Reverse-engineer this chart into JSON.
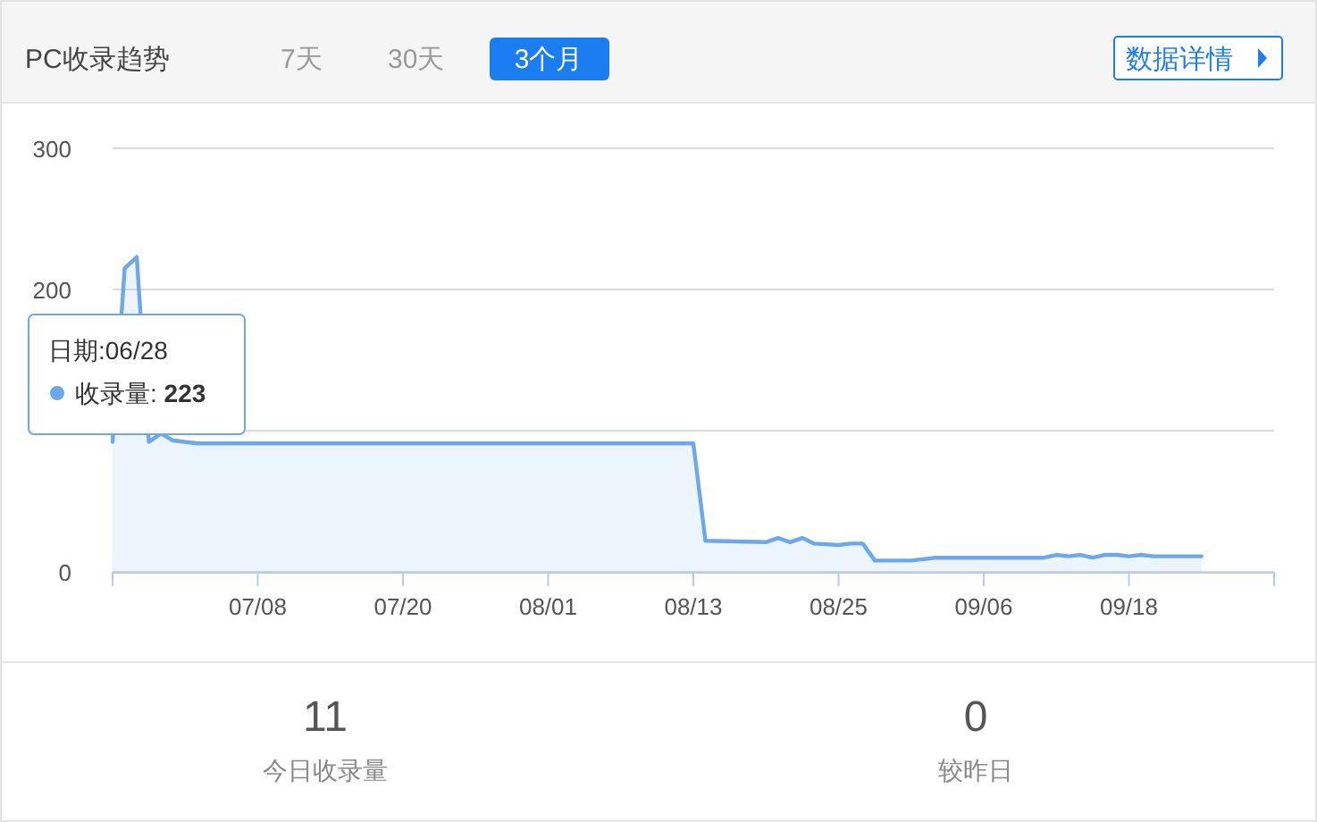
{
  "chart_data": [
    {
      "type": "line",
      "title": "PC收录趋势",
      "annotations": [
        "7天",
        "30天",
        "3个月",
        "数据详情",
        "日期:06/28\n收录量: 223"
      ],
      "x": [
        "--06-26",
        "--06-27",
        "--06-28",
        "--06-29",
        "--06-30",
        "--07-01",
        "--07-03",
        "--08-13",
        "--08-14",
        "--08-19",
        "--08-20",
        "--08-21",
        "--08-22",
        "--08-23",
        "--08-25",
        "--08-26",
        "--08-27",
        "--08-28",
        "--08-31",
        "--09-02",
        "--09-11",
        "--09-12",
        "--09-13",
        "--09-14",
        "--09-15",
        "--09-16",
        "--09-17",
        "--09-18",
        "--09-19",
        "--09-20",
        "--09-24"
      ],
      "series": [
        {
          "type": "area",
          "color": "#6ba9ea",
          "values": [
            92,
            215,
            223,
            92,
            98,
            93,
            91,
            91,
            22,
            21,
            24,
            21,
            24,
            20,
            19,
            20,
            20,
            8,
            8,
            10,
            10,
            12,
            11,
            12,
            10,
            12,
            12,
            11,
            12,
            11,
            11
          ]
        }
      ],
      "xlim": [
        "--06-26",
        "--09-30"
      ],
      "xticks": [
        {
          "value": "--06-26",
          "label": null
        },
        {
          "value": "--07-08",
          "label": "07/08"
        },
        {
          "value": "--07-20",
          "label": "07/20"
        },
        {
          "value": "--08-01",
          "label": "08/01"
        },
        {
          "value": "--08-13",
          "label": "08/13"
        },
        {
          "value": "--08-25",
          "label": "08/25"
        },
        {
          "value": "--09-06",
          "label": "09/06"
        },
        {
          "value": "--09-18",
          "label": "09/18"
        },
        {
          "value": "--09-30",
          "label": null
        }
      ],
      "ylim": [
        0,
        300
      ],
      "yticks": [
        0,
        {
          "value": 100,
          "label": null
        },
        200,
        300
      ],
      "grid": "y",
      "marker": "none",
      "line_style": "solid"
    },
    {
      "type": "other",
      "annotations": [
        "11",
        "今日收录量",
        "0",
        "较昨日"
      ]
    }
  ]
}
